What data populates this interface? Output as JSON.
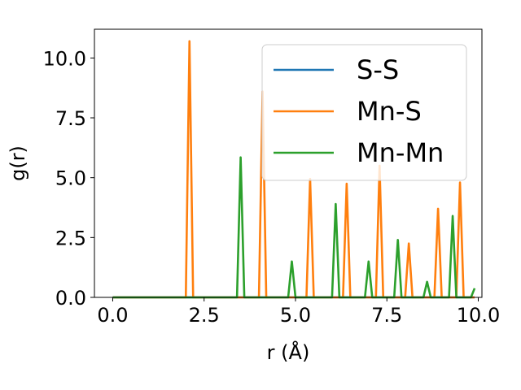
{
  "chart_data": {
    "type": "line",
    "xlabel": "r (Å)",
    "ylabel": "g(r)",
    "xlim": [
      -0.5,
      10.1
    ],
    "ylim": [
      0,
      11.2
    ],
    "xticks": [
      0.0,
      2.5,
      5.0,
      7.5,
      10.0
    ],
    "xtick_labels": [
      "0.0",
      "2.5",
      "5.0",
      "7.5",
      "10.0"
    ],
    "yticks": [
      0.0,
      2.5,
      5.0,
      7.5,
      10.0
    ],
    "ytick_labels": [
      "0.0",
      "2.5",
      "5.0",
      "7.5",
      "10.0"
    ],
    "legend_position": "top-right",
    "grid": false,
    "series": [
      {
        "name": "S-S",
        "color": "#1f77b4",
        "x": [
          0.0,
          9.9
        ],
        "y": [
          0.0,
          0.0
        ]
      },
      {
        "name": "Mn-S",
        "color": "#ff7f0e",
        "x": [
          0.0,
          2.0,
          2.1,
          2.2,
          4.0,
          4.1,
          4.2,
          5.3,
          5.4,
          5.5,
          6.3,
          6.4,
          6.5,
          7.2,
          7.3,
          7.4,
          8.0,
          8.1,
          8.2,
          8.8,
          8.9,
          9.0,
          9.4,
          9.5,
          9.6,
          9.9
        ],
        "y": [
          0.0,
          0.0,
          10.7,
          0.0,
          0.0,
          8.6,
          0.0,
          0.0,
          4.95,
          0.0,
          0.0,
          4.75,
          0.0,
          0.0,
          5.5,
          0.0,
          0.0,
          2.25,
          0.0,
          0.0,
          3.7,
          0.0,
          0.0,
          4.8,
          0.0,
          0.0
        ]
      },
      {
        "name": "Mn-Mn",
        "color": "#2ca02c",
        "x": [
          0.0,
          3.4,
          3.5,
          3.6,
          4.8,
          4.9,
          5.0,
          6.0,
          6.1,
          6.2,
          6.9,
          7.0,
          7.1,
          7.7,
          7.8,
          7.9,
          8.5,
          8.6,
          8.7,
          9.2,
          9.3,
          9.4,
          9.8,
          9.9
        ],
        "y": [
          0.0,
          0.0,
          5.85,
          0.0,
          0.0,
          1.5,
          0.0,
          0.0,
          3.9,
          0.0,
          0.0,
          1.5,
          0.0,
          0.0,
          2.4,
          0.0,
          0.0,
          0.65,
          0.0,
          0.0,
          3.4,
          0.0,
          0.0,
          0.38
        ]
      }
    ]
  }
}
